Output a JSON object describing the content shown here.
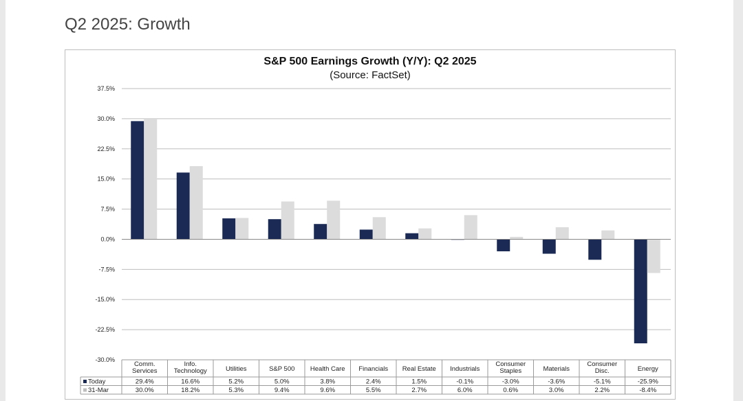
{
  "page": {
    "title": "Q2 2025: Growth"
  },
  "colors": {
    "today": "#1b2a55",
    "mar31": "#dcdcdc",
    "grid": "#bdbdbd",
    "axis": "#888888"
  },
  "chart_data": {
    "type": "bar",
    "title": "S&P 500 Earnings Growth (Y/Y): Q2 2025",
    "subtitle": "(Source: FactSet)",
    "categories": [
      [
        "Comm.",
        "Services"
      ],
      [
        "Info.",
        "Technology"
      ],
      [
        "Utilities"
      ],
      [
        "S&P 500"
      ],
      [
        "Health Care"
      ],
      [
        "Financials"
      ],
      [
        "Real Estate"
      ],
      [
        "Industrials"
      ],
      [
        "Consumer",
        "Staples"
      ],
      [
        "Materials"
      ],
      [
        "Consumer",
        "Disc."
      ],
      [
        "Energy"
      ]
    ],
    "series": [
      {
        "name": "Today",
        "color": "#1b2a55",
        "values": [
          29.4,
          16.6,
          5.2,
          5.0,
          3.8,
          2.4,
          1.5,
          -0.1,
          -3.0,
          -3.6,
          -5.1,
          -25.9
        ],
        "labels": [
          "29.4%",
          "16.6%",
          "5.2%",
          "5.0%",
          "3.8%",
          "2.4%",
          "1.5%",
          "-0.1%",
          "-3.0%",
          "-3.6%",
          "-5.1%",
          "-25.9%"
        ]
      },
      {
        "name": "31-Mar",
        "color": "#dcdcdc",
        "values": [
          30.0,
          18.2,
          5.3,
          9.4,
          9.6,
          5.5,
          2.7,
          6.0,
          0.6,
          3.0,
          2.2,
          -8.4
        ],
        "labels": [
          "30.0%",
          "18.2%",
          "5.3%",
          "9.4%",
          "9.6%",
          "5.5%",
          "2.7%",
          "6.0%",
          "0.6%",
          "3.0%",
          "2.2%",
          "-8.4%"
        ]
      }
    ],
    "ylim": [
      -30.0,
      37.5
    ],
    "yticks": [
      37.5,
      30.0,
      22.5,
      15.0,
      7.5,
      0.0,
      -7.5,
      -15.0,
      -22.5,
      -30.0
    ],
    "ytick_labels": [
      "37.5%",
      "30.0%",
      "22.5%",
      "15.0%",
      "7.5%",
      "0.0%",
      "-7.5%",
      "-15.0%",
      "-22.5%",
      "-30.0%"
    ],
    "grid": true,
    "legend": "data-table"
  }
}
